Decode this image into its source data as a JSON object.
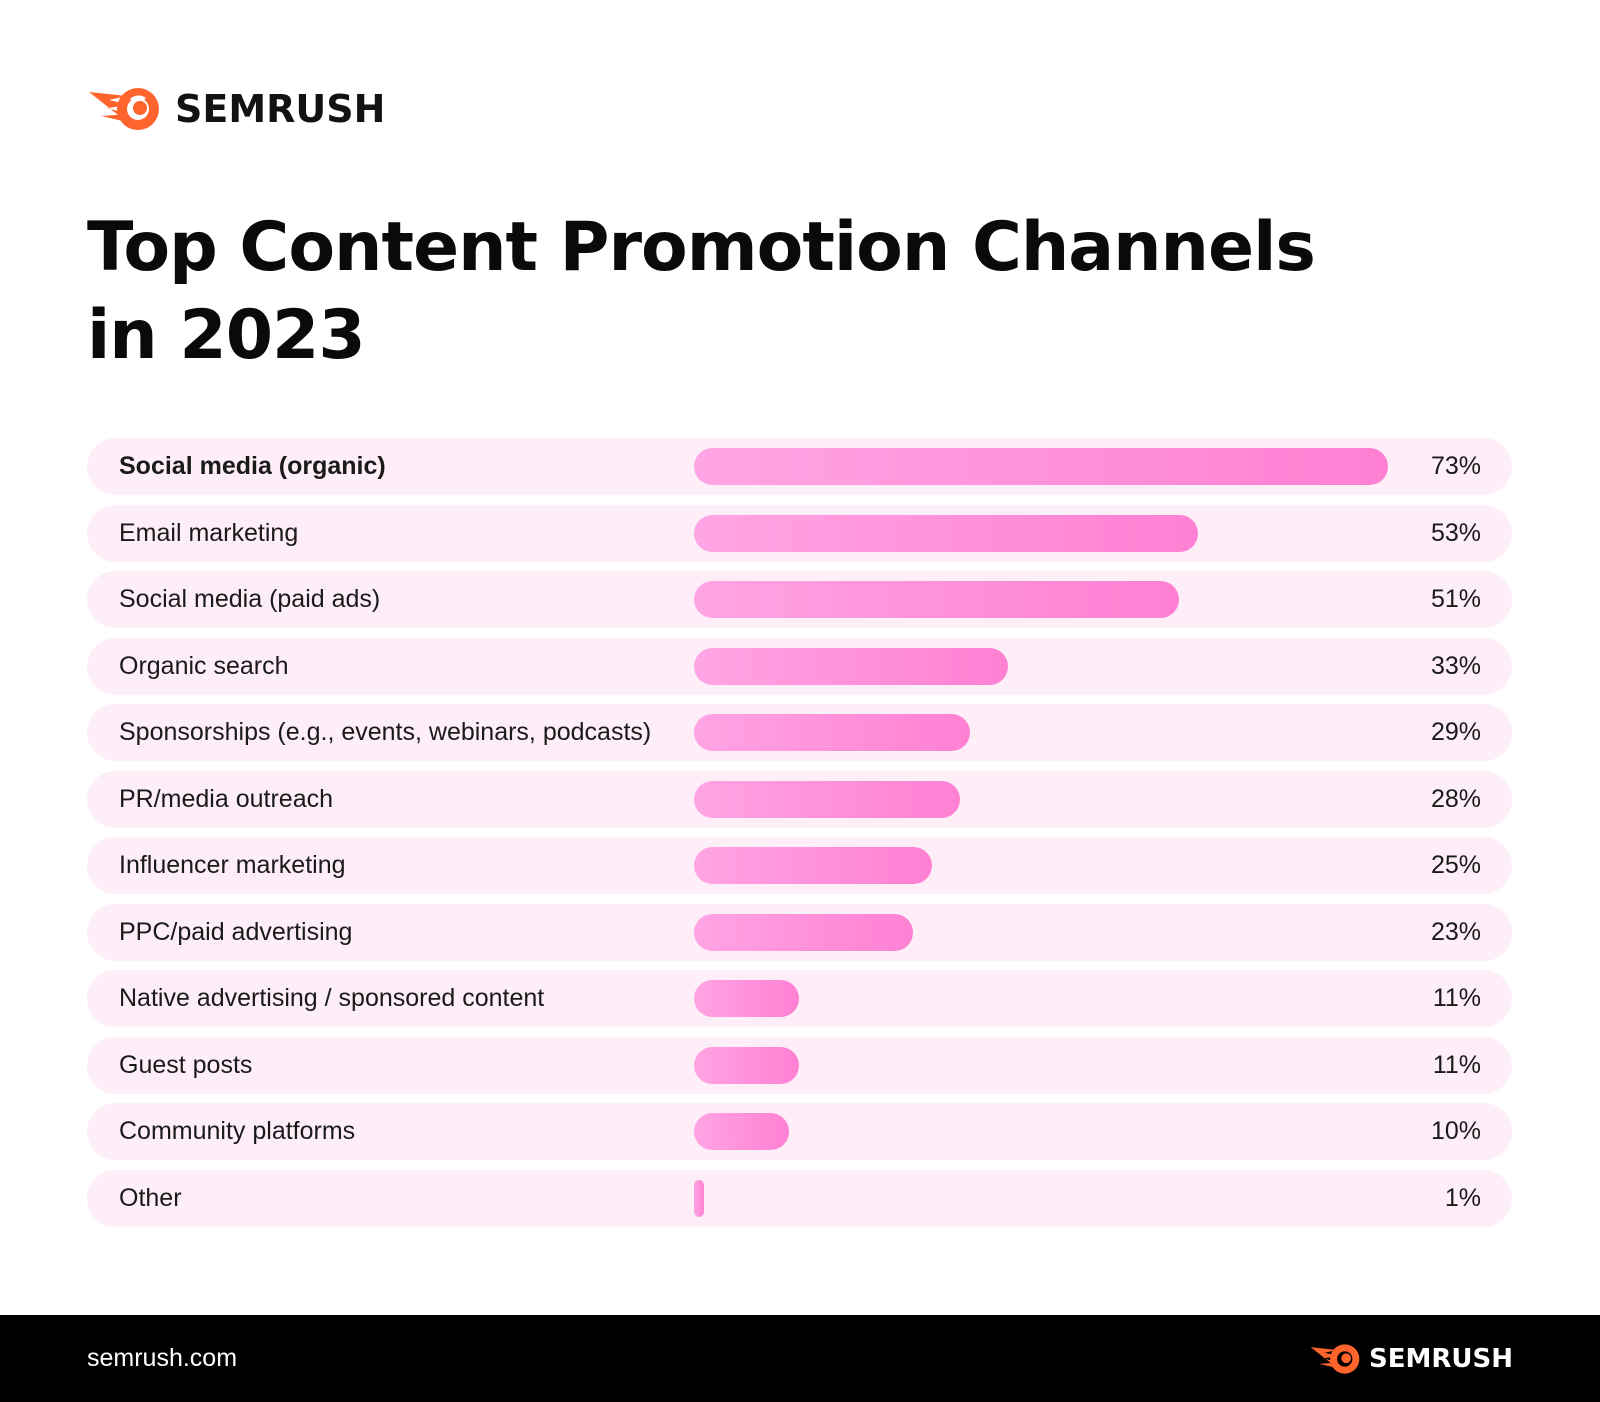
{
  "brand": {
    "name": "SEMRUSH",
    "logo_icon": "semrush-comet-icon",
    "accent": "#ff642d"
  },
  "chart_data": {
    "type": "bar",
    "orientation": "horizontal",
    "title": "Top Content Promotion Channels in 2023",
    "categories": [
      "Social media (organic)",
      "Email marketing",
      "Social media (paid ads)",
      "Organic search",
      "Sponsorships (e.g., events, webinars, podcasts)",
      "PR/media outreach",
      "Influencer marketing",
      "PPC/paid advertising",
      "Native advertising / sponsored content",
      "Guest posts",
      "Community platforms",
      "Other"
    ],
    "values": [
      73,
      53,
      51,
      33,
      29,
      28,
      25,
      23,
      11,
      11,
      10,
      1
    ],
    "value_labels": [
      "73%",
      "53%",
      "51%",
      "33%",
      "29%",
      "28%",
      "25%",
      "23%",
      "11%",
      "11%",
      "10%",
      "1%"
    ],
    "bar_color": "#ff8ad7",
    "row_color": "#fdeef8"
  },
  "footer": {
    "url": "semrush.com",
    "brand": "SEMRUSH"
  }
}
